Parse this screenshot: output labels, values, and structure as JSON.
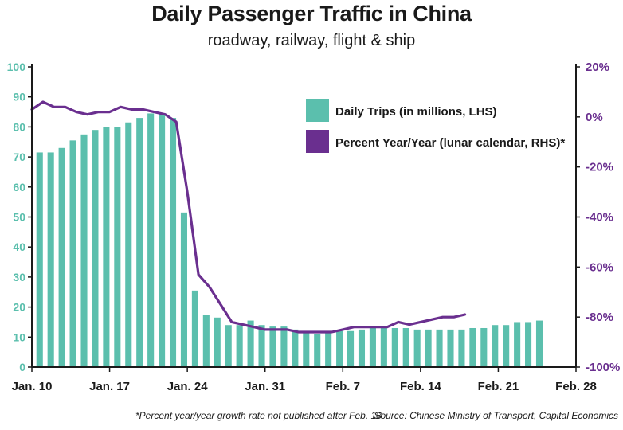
{
  "title": "Daily Passenger Traffic in China",
  "subtitle": "roadway, railway, flight & ship",
  "footnote": "*Percent year/year growth rate not published after Feb. 18",
  "source": "Source: Chinese Ministry of Transport, Capital Economics",
  "colors": {
    "bars": "#5bbfad",
    "line": "#6a2f8f",
    "axis": "#1a1a1a"
  },
  "chart_data": {
    "type": "bar",
    "x_axis": {
      "start_date": "Jan. 10",
      "end_date": "Feb. 28",
      "tick_labels": [
        "Jan. 10",
        "Jan. 17",
        "Jan. 24",
        "Jan. 31",
        "Feb. 7",
        "Feb. 14",
        "Feb. 21",
        "Feb. 28"
      ],
      "tick_days": [
        0,
        7,
        14,
        21,
        28,
        35,
        42,
        49
      ],
      "range": [
        0,
        49
      ]
    },
    "y_left": {
      "ylim": [
        0,
        100
      ],
      "ticks": [
        0,
        10,
        20,
        30,
        40,
        50,
        60,
        70,
        80,
        90,
        100
      ]
    },
    "y_right": {
      "ylim": [
        -100,
        20
      ],
      "ticks": [
        20,
        0,
        -20,
        -40,
        -60,
        -80,
        -100
      ],
      "tick_labels": [
        "20%",
        "0%",
        "-20%",
        "-40%",
        "-60%",
        "-80%",
        "-100%"
      ]
    },
    "series": [
      {
        "name": "Daily Trips (in millions, LHS)",
        "kind": "bar",
        "axis": "left",
        "x": [
          0.7,
          1.7,
          2.7,
          3.7,
          4.7,
          5.7,
          6.7,
          7.7,
          8.7,
          9.7,
          10.7,
          11.7,
          12.7,
          13.7,
          14.7,
          15.7,
          16.7,
          17.7,
          18.7,
          19.7,
          20.7,
          21.7,
          22.7,
          23.7,
          24.7,
          25.7,
          26.7,
          27.7,
          28.7,
          29.7,
          30.7,
          31.7,
          32.7,
          33.7,
          34.7,
          35.7,
          36.7,
          37.7,
          38.7,
          39.7,
          40.7,
          41.7,
          42.7,
          43.7,
          44.7,
          45.7
        ],
        "values": [
          71.5,
          71.5,
          73,
          75.5,
          77.5,
          79,
          80,
          80,
          81.5,
          83,
          84.5,
          84.5,
          83,
          51.5,
          25.5,
          17.5,
          16.5,
          14,
          14,
          15.5,
          14,
          13.5,
          13.5,
          12.5,
          11.5,
          11,
          11.5,
          12,
          12,
          12.5,
          13,
          13,
          13,
          13,
          12.5,
          12.5,
          12.5,
          12.5,
          12.5,
          13,
          13,
          14,
          14,
          15,
          15,
          15.5
        ]
      },
      {
        "name": "Percent Year/Year (lunar calendar, RHS)*",
        "kind": "line",
        "axis": "right",
        "x": [
          0,
          1,
          2,
          3,
          4,
          5,
          6,
          7,
          8,
          9,
          10,
          11,
          12,
          13,
          14,
          15,
          16,
          17,
          18,
          19,
          20,
          21,
          22,
          23,
          24,
          25,
          26,
          27,
          28,
          29,
          30,
          31,
          32,
          33,
          34,
          35,
          36,
          37,
          38,
          39
        ],
        "values": [
          3,
          6,
          4,
          4,
          2,
          1,
          2,
          2,
          4,
          3,
          3,
          2,
          1,
          -2,
          -30,
          -63,
          -68,
          -75,
          -82,
          -83,
          -84,
          -85,
          -85,
          -85,
          -86,
          -86,
          -86,
          -86,
          -85,
          -84,
          -84,
          -84,
          -84,
          -82,
          -83,
          -82,
          -81,
          -80,
          -80,
          -79
        ]
      }
    ],
    "legend": {
      "placement": "top-right"
    }
  }
}
